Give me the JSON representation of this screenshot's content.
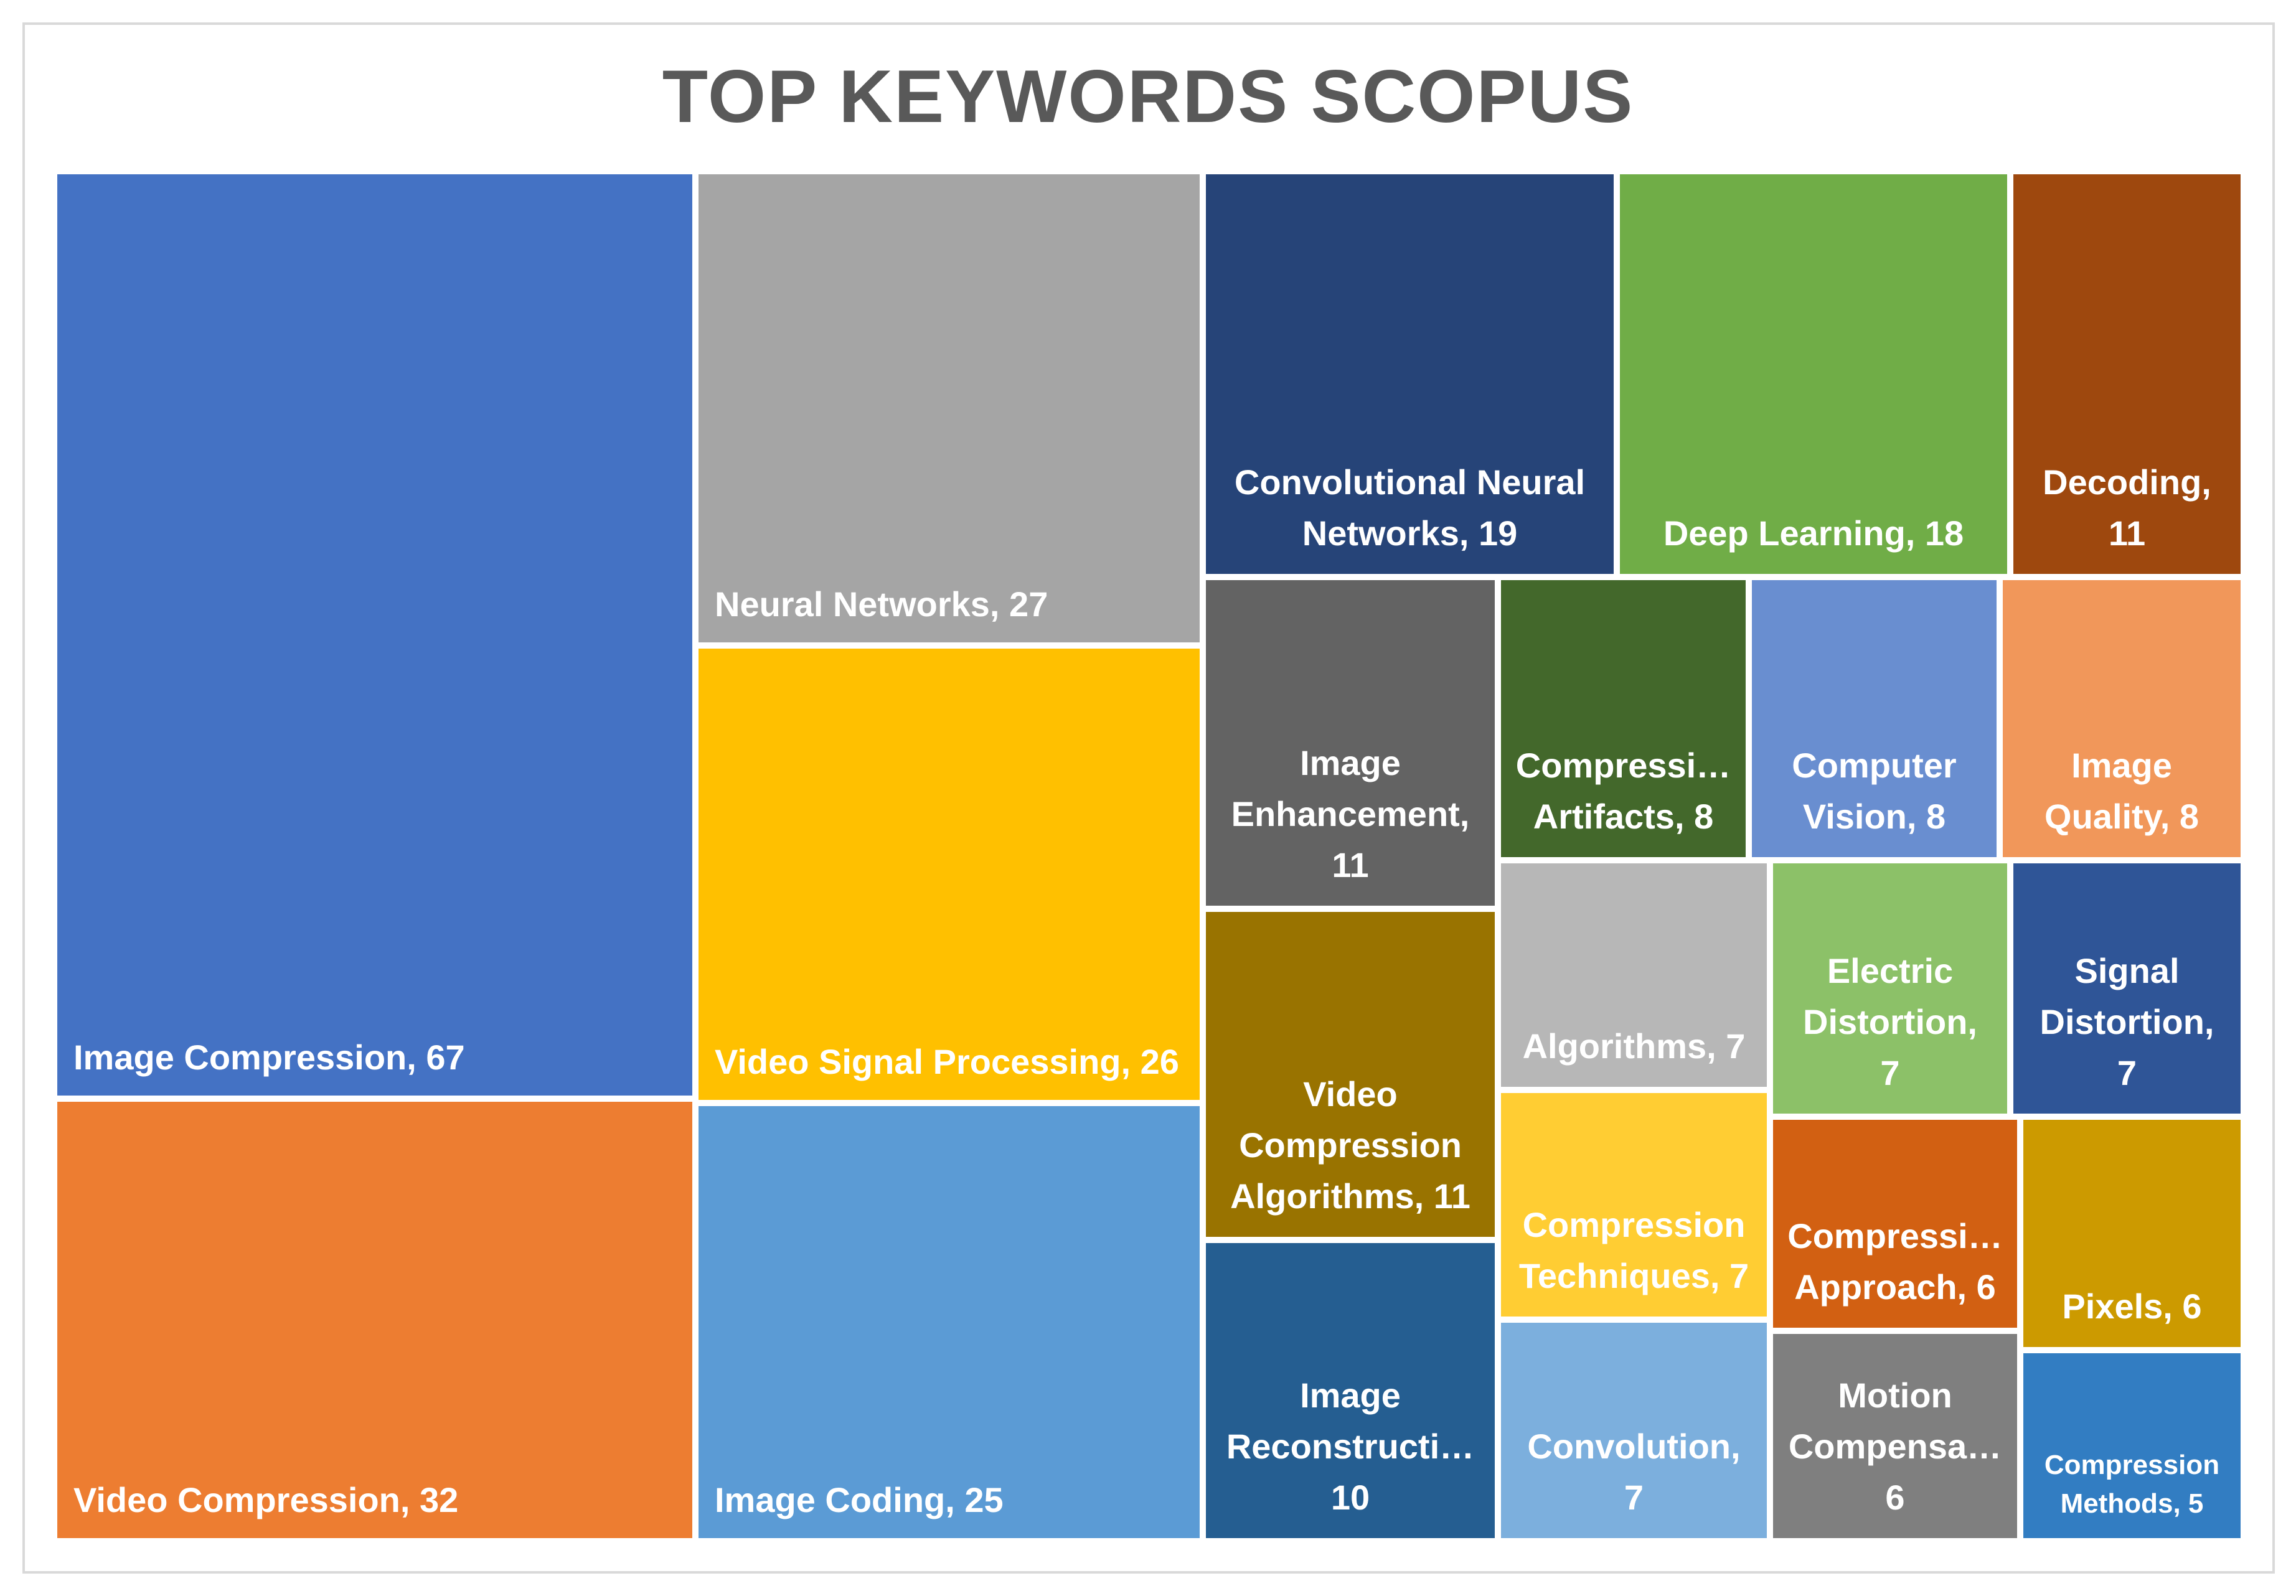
{
  "chart_data": {
    "type": "treemap",
    "title": "TOP KEYWORDS SCOPUS",
    "items": [
      {
        "label": "Image Compression, 67",
        "value": 67,
        "color": "#4472c4"
      },
      {
        "label": "Video Compression, 32",
        "value": 32,
        "color": "#ed7d31"
      },
      {
        "label": "Neural Networks, 27",
        "value": 27,
        "color": "#a5a5a5"
      },
      {
        "label": "Video Signal Processing, 26",
        "value": 26,
        "color": "#ffc000"
      },
      {
        "label": "Image Coding, 25",
        "value": 25,
        "color": "#5b9bd5"
      },
      {
        "label": "Convolutional Neural Networks, 19",
        "value": 19,
        "color": "#264478"
      },
      {
        "label": "Deep Learning, 18",
        "value": 18,
        "color": "#70ad47"
      },
      {
        "label": "Decoding, 11",
        "value": 11,
        "color": "#9e480e"
      },
      {
        "label": "Image Enhancement, 11",
        "value": 11,
        "color": "#636363"
      },
      {
        "label": "Compressi… Artifacts, 8",
        "value": 8,
        "color": "#43682b"
      },
      {
        "label": "Computer Vision, 8",
        "value": 8,
        "color": "#698ed0"
      },
      {
        "label": "Image Quality, 8",
        "value": 8,
        "color": "#f1975a"
      },
      {
        "label": "Video Compression Algorithms, 11",
        "value": 11,
        "color": "#997300"
      },
      {
        "label": "Algorithms, 7",
        "value": 7,
        "color": "#b7b7b7"
      },
      {
        "label": "Electric Distortion, 7",
        "value": 7,
        "color": "#8cc168"
      },
      {
        "label": "Signal Distortion, 7",
        "value": 7,
        "color": "#2f5597"
      },
      {
        "label": "Compression Techniques, 7",
        "value": 7,
        "color": "#ffcd33"
      },
      {
        "label": "Compressi… Approach, 6",
        "value": 6,
        "color": "#d26012"
      },
      {
        "label": "Pixels, 6",
        "value": 6,
        "color": "#cc9a00"
      },
      {
        "label": "Image Reconstructi… 10",
        "value": 10,
        "color": "#255e91"
      },
      {
        "label": "Convolution, 7",
        "value": 7,
        "color": "#7cafdd"
      },
      {
        "label": "Motion Compensa… 6",
        "value": 6,
        "color": "#7f7f7f"
      },
      {
        "label": "Compression Methods, 5",
        "value": 5,
        "color": "#327dc2"
      }
    ]
  }
}
